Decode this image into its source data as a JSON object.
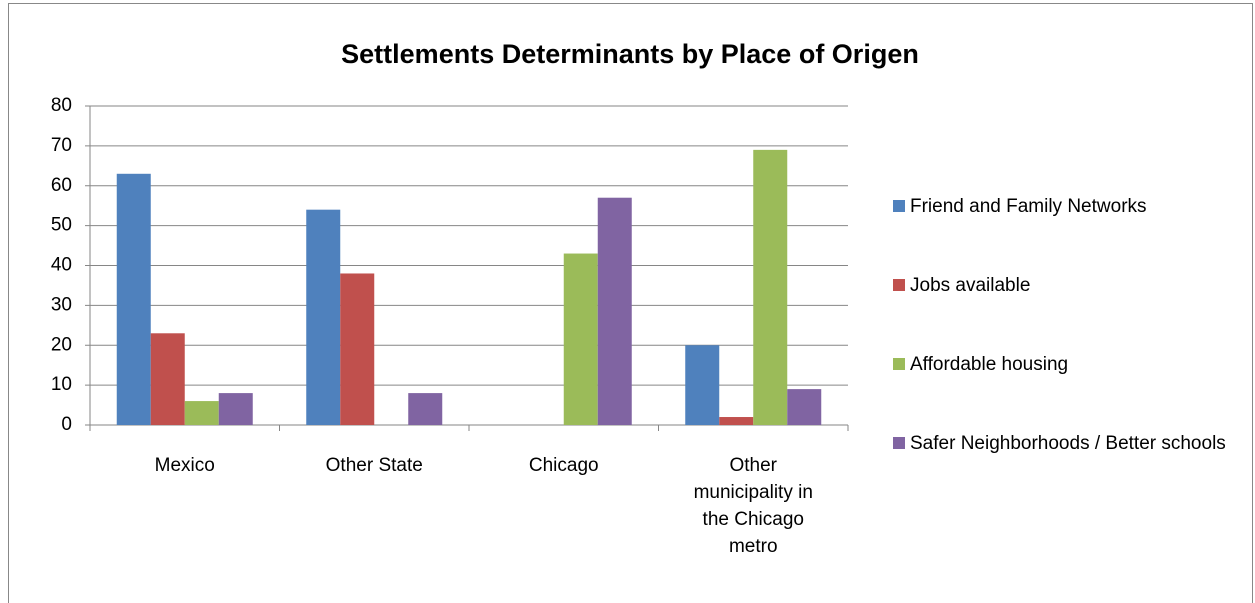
{
  "chart_data": {
    "type": "bar",
    "title": "Settlements Determinants by Place of Origen",
    "categories": [
      "Mexico",
      "Other State",
      "Chicago",
      "Other municipality in the Chicago metro"
    ],
    "series": [
      {
        "name": "Friend and Family Networks",
        "color": "#4f81bd",
        "values": [
          63,
          54,
          0,
          20
        ]
      },
      {
        "name": "Jobs available",
        "color": "#c0504d",
        "values": [
          23,
          38,
          0,
          2
        ]
      },
      {
        "name": "Affordable housing",
        "color": "#9bbb59",
        "values": [
          6,
          0,
          43,
          69
        ]
      },
      {
        "name": "Safer Neighborhoods / Better schools",
        "color": "#8064a2",
        "values": [
          8,
          8,
          57,
          9
        ]
      }
    ],
    "ylim": [
      0,
      80
    ],
    "yticks": [
      0,
      10,
      20,
      30,
      40,
      50,
      60,
      70,
      80
    ],
    "grid": true,
    "legend": "right"
  }
}
